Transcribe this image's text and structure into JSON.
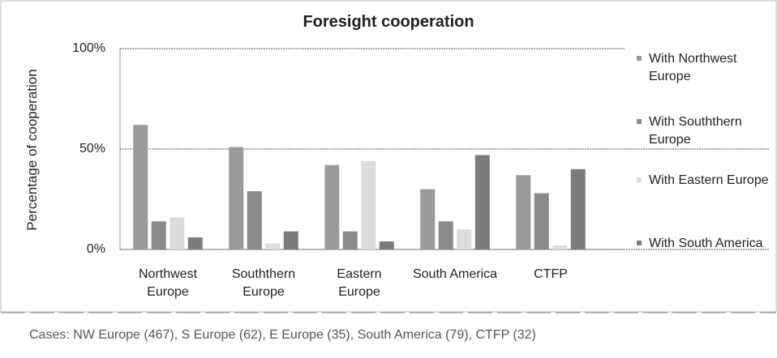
{
  "chart_data": {
    "type": "bar",
    "title": "Foresight cooperation",
    "y_label": "Percentage of cooperation",
    "categories": [
      "Northwest Europe",
      "Souththern Europe",
      "Eastern Europe",
      "South America",
      "CTFP"
    ],
    "series": [
      {
        "name": "With Northwest Europe",
        "color": "#9a9a9a",
        "values": [
          62,
          51,
          42,
          30,
          37
        ]
      },
      {
        "name": "With Souththern Europe",
        "color": "#8a8a8a",
        "values": [
          14,
          29,
          9,
          14,
          28
        ]
      },
      {
        "name": "With Eastern Europe",
        "color": "#dcdcdc",
        "values": [
          16,
          3,
          44,
          10,
          2
        ]
      },
      {
        "name": "With South America",
        "color": "#7c7c7c",
        "values": [
          6,
          9,
          4,
          47,
          40
        ]
      }
    ],
    "ylim": [
      0,
      100
    ],
    "yticks": [
      {
        "value": 0,
        "label": "0%"
      },
      {
        "value": 50,
        "label": "50%"
      },
      {
        "value": 100,
        "label": "100%"
      }
    ],
    "grid": true,
    "legend": "right",
    "footer": "Cases: NW Europe (467), S Europe (62), E Europe (35), South America (79), CTFP (32)"
  }
}
